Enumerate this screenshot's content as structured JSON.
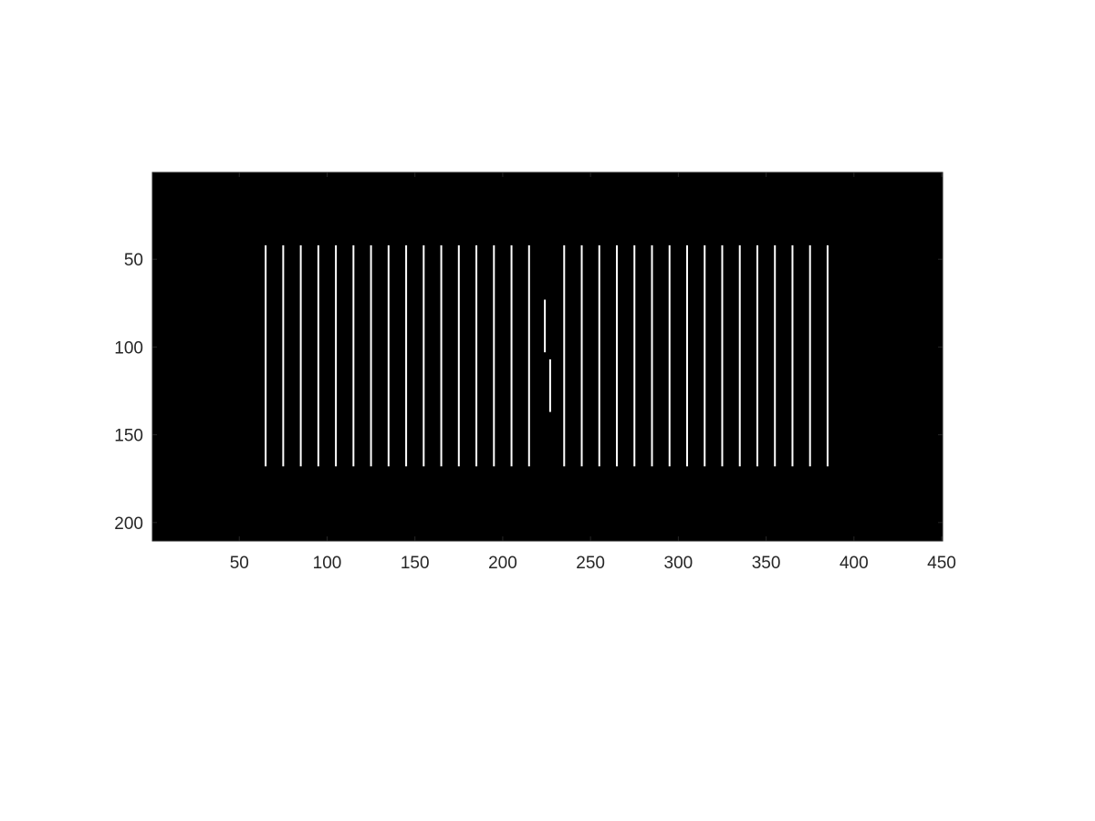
{
  "chart_data": {
    "type": "heatmap",
    "title": "",
    "xlabel": "",
    "ylabel": "",
    "xlim": [
      0.5,
      450.5
    ],
    "ylim": [
      0.5,
      210.5
    ],
    "y_direction": "reverse",
    "background_color": "#000000",
    "mark_color": "#ffffff",
    "axis_color": "#262626",
    "grid": false,
    "x_ticks": [
      50,
      100,
      150,
      200,
      250,
      300,
      350,
      400,
      450
    ],
    "y_ticks": [
      50,
      100,
      150,
      200
    ],
    "lines": [
      {
        "x": 65,
        "y_start": 42,
        "y_end": 168
      },
      {
        "x": 75,
        "y_start": 42,
        "y_end": 168
      },
      {
        "x": 85,
        "y_start": 42,
        "y_end": 168
      },
      {
        "x": 95,
        "y_start": 42,
        "y_end": 168
      },
      {
        "x": 105,
        "y_start": 42,
        "y_end": 168
      },
      {
        "x": 115,
        "y_start": 42,
        "y_end": 168
      },
      {
        "x": 125,
        "y_start": 42,
        "y_end": 168
      },
      {
        "x": 135,
        "y_start": 42,
        "y_end": 168
      },
      {
        "x": 145,
        "y_start": 42,
        "y_end": 168
      },
      {
        "x": 155,
        "y_start": 42,
        "y_end": 168
      },
      {
        "x": 165,
        "y_start": 42,
        "y_end": 168
      },
      {
        "x": 175,
        "y_start": 42,
        "y_end": 168
      },
      {
        "x": 185,
        "y_start": 42,
        "y_end": 168
      },
      {
        "x": 195,
        "y_start": 42,
        "y_end": 168
      },
      {
        "x": 205,
        "y_start": 42,
        "y_end": 168
      },
      {
        "x": 215,
        "y_start": 42,
        "y_end": 168
      },
      {
        "x": 224,
        "y_start": 73,
        "y_end": 103
      },
      {
        "x": 227,
        "y_start": 107,
        "y_end": 137
      },
      {
        "x": 235,
        "y_start": 42,
        "y_end": 168
      },
      {
        "x": 245,
        "y_start": 42,
        "y_end": 168
      },
      {
        "x": 255,
        "y_start": 42,
        "y_end": 168
      },
      {
        "x": 265,
        "y_start": 42,
        "y_end": 168
      },
      {
        "x": 275,
        "y_start": 42,
        "y_end": 168
      },
      {
        "x": 285,
        "y_start": 42,
        "y_end": 168
      },
      {
        "x": 295,
        "y_start": 42,
        "y_end": 168
      },
      {
        "x": 305,
        "y_start": 42,
        "y_end": 168
      },
      {
        "x": 315,
        "y_start": 42,
        "y_end": 168
      },
      {
        "x": 325,
        "y_start": 42,
        "y_end": 168
      },
      {
        "x": 335,
        "y_start": 42,
        "y_end": 168
      },
      {
        "x": 345,
        "y_start": 42,
        "y_end": 168
      },
      {
        "x": 355,
        "y_start": 42,
        "y_end": 168
      },
      {
        "x": 365,
        "y_start": 42,
        "y_end": 168
      },
      {
        "x": 375,
        "y_start": 42,
        "y_end": 168
      },
      {
        "x": 385,
        "y_start": 42,
        "y_end": 168
      }
    ]
  }
}
